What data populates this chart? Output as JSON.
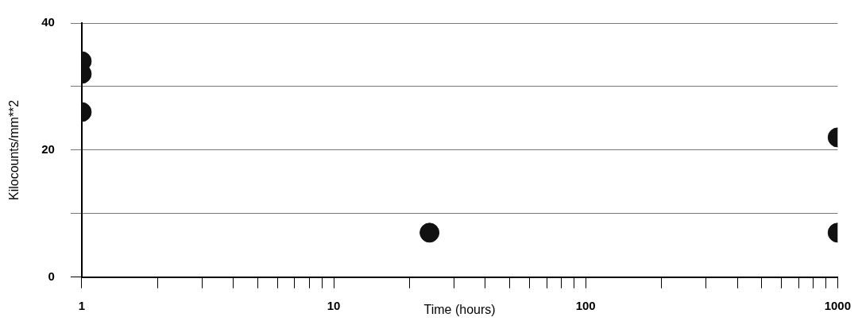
{
  "chart_data": {
    "type": "scatter",
    "xlabel": "Time (hours)",
    "ylabel": "Kilocounts/mm**2",
    "x": [
      1,
      1,
      1,
      24,
      1000,
      1000
    ],
    "series": [
      {
        "color": "#111111",
        "values": [
          34,
          32,
          26,
          7,
          22,
          7
        ]
      }
    ],
    "log": "x",
    "xlim": [
      1,
      1000
    ],
    "xticks": [
      1,
      {
        "value": 2,
        "label": null
      },
      {
        "value": 3,
        "label": null
      },
      {
        "value": 4,
        "label": null
      },
      {
        "value": 5,
        "label": null
      },
      {
        "value": 6,
        "label": null
      },
      {
        "value": 7,
        "label": null
      },
      {
        "value": 8,
        "label": null
      },
      {
        "value": 9,
        "label": null
      },
      10,
      {
        "value": 20,
        "label": null
      },
      {
        "value": 30,
        "label": null
      },
      {
        "value": 40,
        "label": null
      },
      {
        "value": 50,
        "label": null
      },
      {
        "value": 60,
        "label": null
      },
      {
        "value": 70,
        "label": null
      },
      {
        "value": 80,
        "label": null
      },
      {
        "value": 90,
        "label": null
      },
      100,
      {
        "value": 200,
        "label": null
      },
      {
        "value": 300,
        "label": null
      },
      {
        "value": 400,
        "label": null
      },
      {
        "value": 500,
        "label": null
      },
      {
        "value": 600,
        "label": null
      },
      {
        "value": 700,
        "label": null
      },
      {
        "value": 800,
        "label": null
      },
      {
        "value": 900,
        "label": null
      },
      1000
    ],
    "ylim": [
      0,
      40
    ],
    "yticks": [
      0,
      {
        "value": 10,
        "label": null
      },
      20,
      {
        "value": 30,
        "label": null
      },
      40
    ],
    "grid": "y",
    "marker": "circle",
    "legend": false
  }
}
